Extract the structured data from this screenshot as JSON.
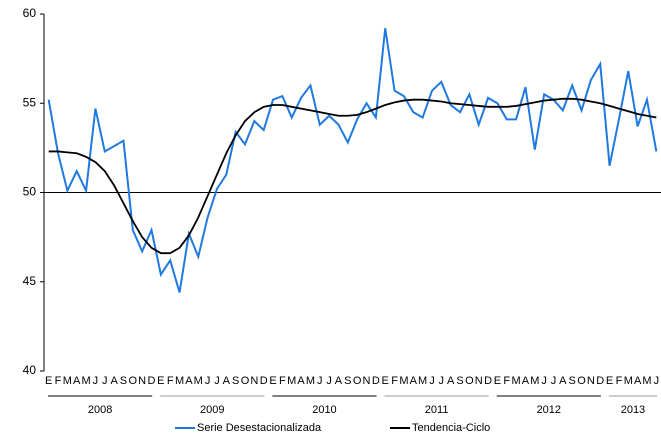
{
  "chart_data": {
    "type": "line",
    "categories": [
      "E",
      "F",
      "M",
      "A",
      "M",
      "J",
      "J",
      "A",
      "S",
      "O",
      "N",
      "D",
      "E",
      "F",
      "M",
      "A",
      "M",
      "J",
      "J",
      "A",
      "S",
      "O",
      "N",
      "D",
      "E",
      "F",
      "M",
      "A",
      "M",
      "J",
      "J",
      "A",
      "S",
      "O",
      "N",
      "D",
      "E",
      "F",
      "M",
      "A",
      "M",
      "J",
      "J",
      "A",
      "S",
      "O",
      "N",
      "D",
      "E",
      "F",
      "M",
      "A",
      "M",
      "J",
      "J",
      "A",
      "S",
      "O",
      "N",
      "D",
      "E",
      "F",
      "M",
      "A",
      "M",
      "J"
    ],
    "years": [
      "2008",
      "2009",
      "2010",
      "2011",
      "2012",
      "2013"
    ],
    "series": [
      {
        "name": "Serie Desestacionalizada",
        "color": "#1f7ae0",
        "values": [
          55.2,
          52.2,
          50.1,
          51.2,
          50.1,
          54.7,
          52.3,
          52.6,
          52.9,
          47.9,
          46.7,
          47.9,
          45.4,
          46.2,
          44.4,
          47.7,
          46.4,
          48.6,
          50.2,
          51.0,
          53.4,
          52.7,
          54.0,
          53.5,
          55.2,
          55.4,
          54.2,
          55.3,
          56.0,
          53.8,
          54.3,
          53.8,
          52.8,
          54.1,
          55.0,
          54.2,
          59.2,
          55.7,
          55.4,
          54.5,
          54.2,
          55.7,
          56.2,
          54.9,
          54.5,
          55.5,
          53.8,
          55.3,
          55.0,
          54.1,
          54.1,
          55.9,
          52.4,
          55.5,
          55.2,
          54.6,
          56.0,
          54.6,
          56.3,
          57.2,
          51.5,
          54.1,
          56.8,
          53.7,
          55.2,
          52.3
        ]
      },
      {
        "name": "Tendencia-Ciclo",
        "color": "#000000",
        "values": [
          52.3,
          52.3,
          52.25,
          52.2,
          52.0,
          51.7,
          51.2,
          50.4,
          49.4,
          48.4,
          47.5,
          46.9,
          46.6,
          46.6,
          46.9,
          47.6,
          48.6,
          49.8,
          51.0,
          52.2,
          53.2,
          54.0,
          54.5,
          54.8,
          54.9,
          54.9,
          54.8,
          54.7,
          54.6,
          54.5,
          54.4,
          54.3,
          54.3,
          54.35,
          54.5,
          54.7,
          54.9,
          55.05,
          55.15,
          55.2,
          55.2,
          55.15,
          55.1,
          55.0,
          54.95,
          54.9,
          54.85,
          54.8,
          54.8,
          54.8,
          54.85,
          54.95,
          55.05,
          55.15,
          55.2,
          55.25,
          55.25,
          55.2,
          55.1,
          55.0,
          54.85,
          54.7,
          54.55,
          54.4,
          54.3,
          54.2
        ]
      }
    ],
    "ylim": [
      40,
      60
    ],
    "yticks": [
      40,
      45,
      50,
      55,
      60
    ],
    "x_axis_crossing": 50
  }
}
